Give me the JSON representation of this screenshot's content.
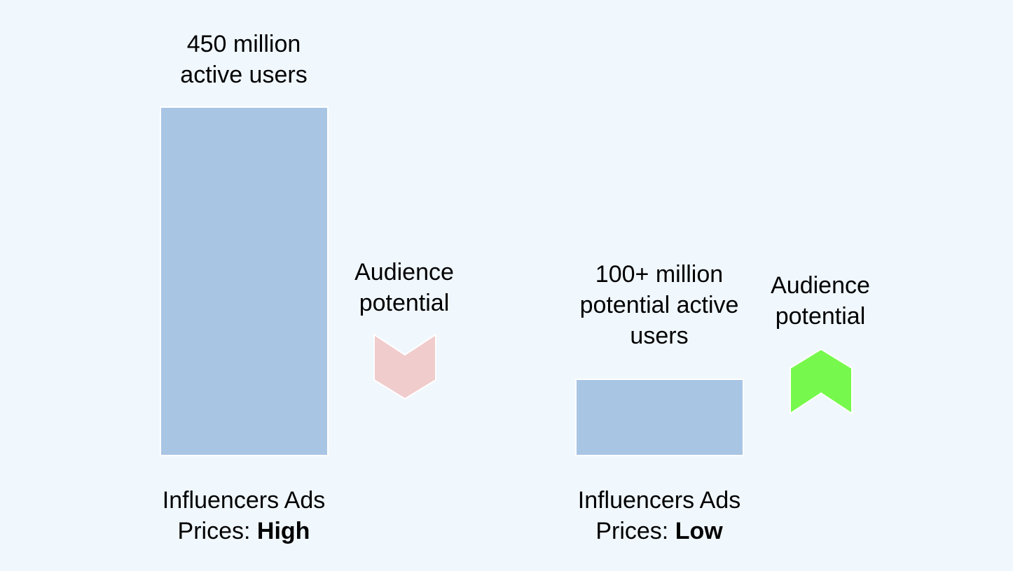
{
  "chart_data": {
    "type": "bar",
    "categories": [
      "Influencers Ads Prices: High",
      "Influencers Ads Prices: Low"
    ],
    "values": [
      450,
      100
    ],
    "value_labels": [
      [
        "450 million",
        "active users"
      ],
      [
        "100+ million",
        "potential active",
        "users"
      ]
    ],
    "category_labels": [
      {
        "line1": "Influencers Ads",
        "prefix": "Prices: ",
        "emphasis": "High"
      },
      {
        "line1": "Influencers Ads",
        "prefix": "Prices: ",
        "emphasis": "Low"
      }
    ],
    "indicators": [
      {
        "label": [
          "Audience",
          "potential"
        ],
        "direction": "down",
        "color": "#f0cccc"
      },
      {
        "label": [
          "Audience",
          "potential"
        ],
        "direction": "up",
        "color": "#76f94c"
      }
    ],
    "bar_color": "#a8c5e4",
    "ylim": [
      0,
      450
    ],
    "grid": false
  }
}
